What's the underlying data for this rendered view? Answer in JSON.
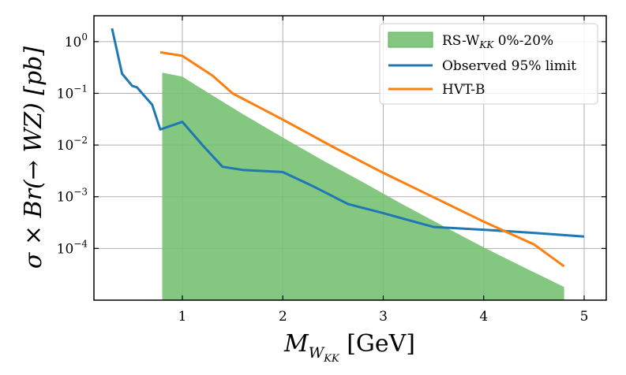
{
  "chart_data": {
    "type": "line",
    "xlabel": "M_{W_KK} [GeV]",
    "ylabel": "σ × Br(→ WZ) [pb]",
    "x_axis": {
      "range": [
        0.12,
        5.22
      ],
      "ticks": [
        1,
        2,
        3,
        4,
        5
      ],
      "tick_labels": [
        "1",
        "2",
        "3",
        "4",
        "5"
      ]
    },
    "y_axis": {
      "scale": "log",
      "range_exponent": [
        -5.0,
        0.5
      ],
      "tick_exponents": [
        0,
        -1,
        -2,
        -3,
        -4
      ],
      "tick_labels": [
        {
          "base": "10",
          "exp": "0"
        },
        {
          "base": "10",
          "exp": "−1"
        },
        {
          "base": "10",
          "exp": "−2"
        },
        {
          "base": "10",
          "exp": "−3"
        },
        {
          "base": "10",
          "exp": "−4"
        }
      ]
    },
    "grid": true,
    "legend_position": "top-right",
    "band": {
      "name": "RS-W_KK 0%-20%",
      "color": "#76c172",
      "points": [
        [
          0.8,
          0.25
        ],
        [
          1.0,
          0.21
        ],
        [
          1.2,
          0.12
        ],
        [
          1.6,
          0.04
        ],
        [
          2.0,
          0.014
        ],
        [
          2.4,
          0.005
        ],
        [
          2.8,
          0.0019
        ],
        [
          3.2,
          0.0007
        ],
        [
          3.6,
          0.00027
        ],
        [
          4.0,
          0.000105
        ],
        [
          4.4,
          4.3e-05
        ],
        [
          4.8,
          1.8e-05
        ]
      ]
    },
    "series": [
      {
        "name": "Observed 95% limit",
        "color": "#1f77b4",
        "points": [
          [
            0.3,
            1.8
          ],
          [
            0.4,
            0.24
          ],
          [
            0.5,
            0.14
          ],
          [
            0.55,
            0.13
          ],
          [
            0.6,
            0.1
          ],
          [
            0.7,
            0.06
          ],
          [
            0.78,
            0.02
          ],
          [
            1.0,
            0.028
          ],
          [
            1.2,
            0.01
          ],
          [
            1.4,
            0.0038
          ],
          [
            1.6,
            0.0033
          ],
          [
            2.0,
            0.003
          ],
          [
            2.3,
            0.0016
          ],
          [
            2.65,
            0.00072
          ],
          [
            3.0,
            0.00048
          ],
          [
            3.5,
            0.00026
          ],
          [
            4.0,
            0.00023
          ],
          [
            4.5,
            0.0002
          ],
          [
            5.0,
            0.00017
          ]
        ]
      },
      {
        "name": "HVT-B",
        "color": "#ff7f0e",
        "points": [
          [
            0.78,
            0.62
          ],
          [
            1.0,
            0.53
          ],
          [
            1.3,
            0.22
          ],
          [
            1.5,
            0.1
          ],
          [
            2.0,
            0.031
          ],
          [
            2.5,
            0.0092
          ],
          [
            3.0,
            0.0029
          ],
          [
            3.5,
            0.00098
          ],
          [
            4.0,
            0.00033
          ],
          [
            4.5,
            0.00012
          ],
          [
            4.8,
            4.5e-05
          ]
        ]
      }
    ],
    "legend": [
      {
        "label_prefix": "RS-W",
        "label_sub": "KK",
        "label_suffix": " 0%-20%",
        "kind": "patch"
      },
      {
        "label": "Observed 95% limit",
        "kind": "line"
      },
      {
        "label": "HVT-B",
        "kind": "line"
      }
    ]
  }
}
